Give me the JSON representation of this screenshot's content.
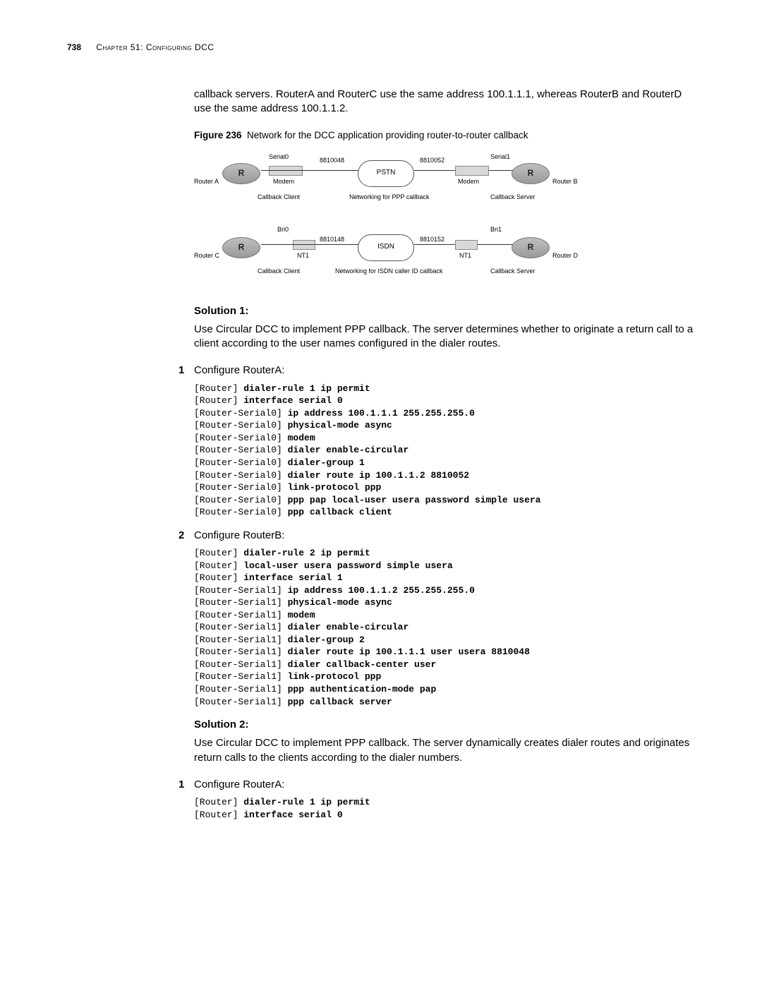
{
  "header": {
    "page_number": "738",
    "chapter_label": "Chapter 51: Configuring DCC"
  },
  "intro_para": "callback servers. RouterA and RouterC use the same address 100.1.1.1, whereas RouterB and RouterD use the same address 100.1.1.2.",
  "figure": {
    "label": "Figure 236",
    "caption": "Network for the DCC application providing router-to-router callback",
    "top": {
      "routerA": "Router A",
      "routerB": "Router B",
      "serial0": "Serial0",
      "serial1": "Serial1",
      "num_left": "8810048",
      "num_right": "8810052",
      "cloud": "PSTN",
      "modem": "Modem",
      "cb_client": "Callback Client",
      "cb_server": "Callback Server",
      "net_label": "Networking for PPP callback"
    },
    "bottom": {
      "routerC": "Router C",
      "routerD": "Router D",
      "bri0": "Bri0",
      "bri1": "Bri1",
      "num_left": "8810148",
      "num_right": "8810152",
      "cloud": "ISDN",
      "nt1": "NT1",
      "cb_client": "Callback Client",
      "cb_server": "Callback Server",
      "net_label": "Networking for ISDN caller ID callback"
    }
  },
  "solution1": {
    "heading": "Solution 1:",
    "text": "Use Circular DCC to implement PPP callback. The server determines whether to originate a return call to a client according to the user names configured in the dialer routes.",
    "step1_num": "1",
    "step1_text": "Configure RouterA:",
    "code1": [
      {
        "p": "[Router] ",
        "c": "dialer-rule 1 ip permit"
      },
      {
        "p": "[Router] ",
        "c": "interface serial 0"
      },
      {
        "p": "[Router-Serial0] ",
        "c": "ip address 100.1.1.1 255.255.255.0"
      },
      {
        "p": "[Router-Serial0] ",
        "c": "physical-mode async"
      },
      {
        "p": "[Router-Serial0] ",
        "c": "modem"
      },
      {
        "p": "[Router-Serial0] ",
        "c": "dialer enable-circular"
      },
      {
        "p": "[Router-Serial0] ",
        "c": "dialer-group 1"
      },
      {
        "p": "[Router-Serial0] ",
        "c": "dialer route ip 100.1.1.2 8810052"
      },
      {
        "p": "[Router-Serial0] ",
        "c": "link-protocol ppp"
      },
      {
        "p": "[Router-Serial0] ",
        "c": "ppp pap local-user usera password simple usera"
      },
      {
        "p": "[Router-Serial0] ",
        "c": "ppp callback client"
      }
    ],
    "step2_num": "2",
    "step2_text": "Configure RouterB:",
    "code2": [
      {
        "p": "[Router] ",
        "c": "dialer-rule 2 ip permit"
      },
      {
        "p": "[Router] ",
        "c": "local-user usera password simple usera"
      },
      {
        "p": "[Router] ",
        "c": "interface serial 1"
      },
      {
        "p": "[Router-Serial1] ",
        "c": "ip address 100.1.1.2 255.255.255.0"
      },
      {
        "p": "[Router-Serial1] ",
        "c": "physical-mode async"
      },
      {
        "p": "[Router-Serial1] ",
        "c": "modem"
      },
      {
        "p": "[Router-Serial1] ",
        "c": "dialer enable-circular"
      },
      {
        "p": "[Router-Serial1] ",
        "c": "dialer-group 2"
      },
      {
        "p": "[Router-Serial1] ",
        "c": "dialer route ip 100.1.1.1 user usera 8810048"
      },
      {
        "p": "[Router-Serial1] ",
        "c": "dialer callback-center user"
      },
      {
        "p": "[Router-Serial1] ",
        "c": "link-protocol ppp"
      },
      {
        "p": "[Router-Serial1] ",
        "c": "ppp authentication-mode pap"
      },
      {
        "p": "[Router-Serial1] ",
        "c": "ppp callback server"
      }
    ]
  },
  "solution2": {
    "heading": "Solution 2:",
    "text": "Use Circular DCC to implement PPP callback. The server dynamically creates dialer routes and originates return calls to the clients according to the dialer numbers.",
    "step1_num": "1",
    "step1_text": "Configure RouterA:",
    "code1": [
      {
        "p": "[Router] ",
        "c": "dialer-rule 1 ip permit"
      },
      {
        "p": "[Router] ",
        "c": "interface serial 0"
      }
    ]
  },
  "style": {
    "body_font_size_pt": 11,
    "code_font_size_pt": 10,
    "text_color": "#000000",
    "background_color": "#ffffff",
    "router_fill": "#a8a8a8",
    "cloud_border": "#555555"
  }
}
